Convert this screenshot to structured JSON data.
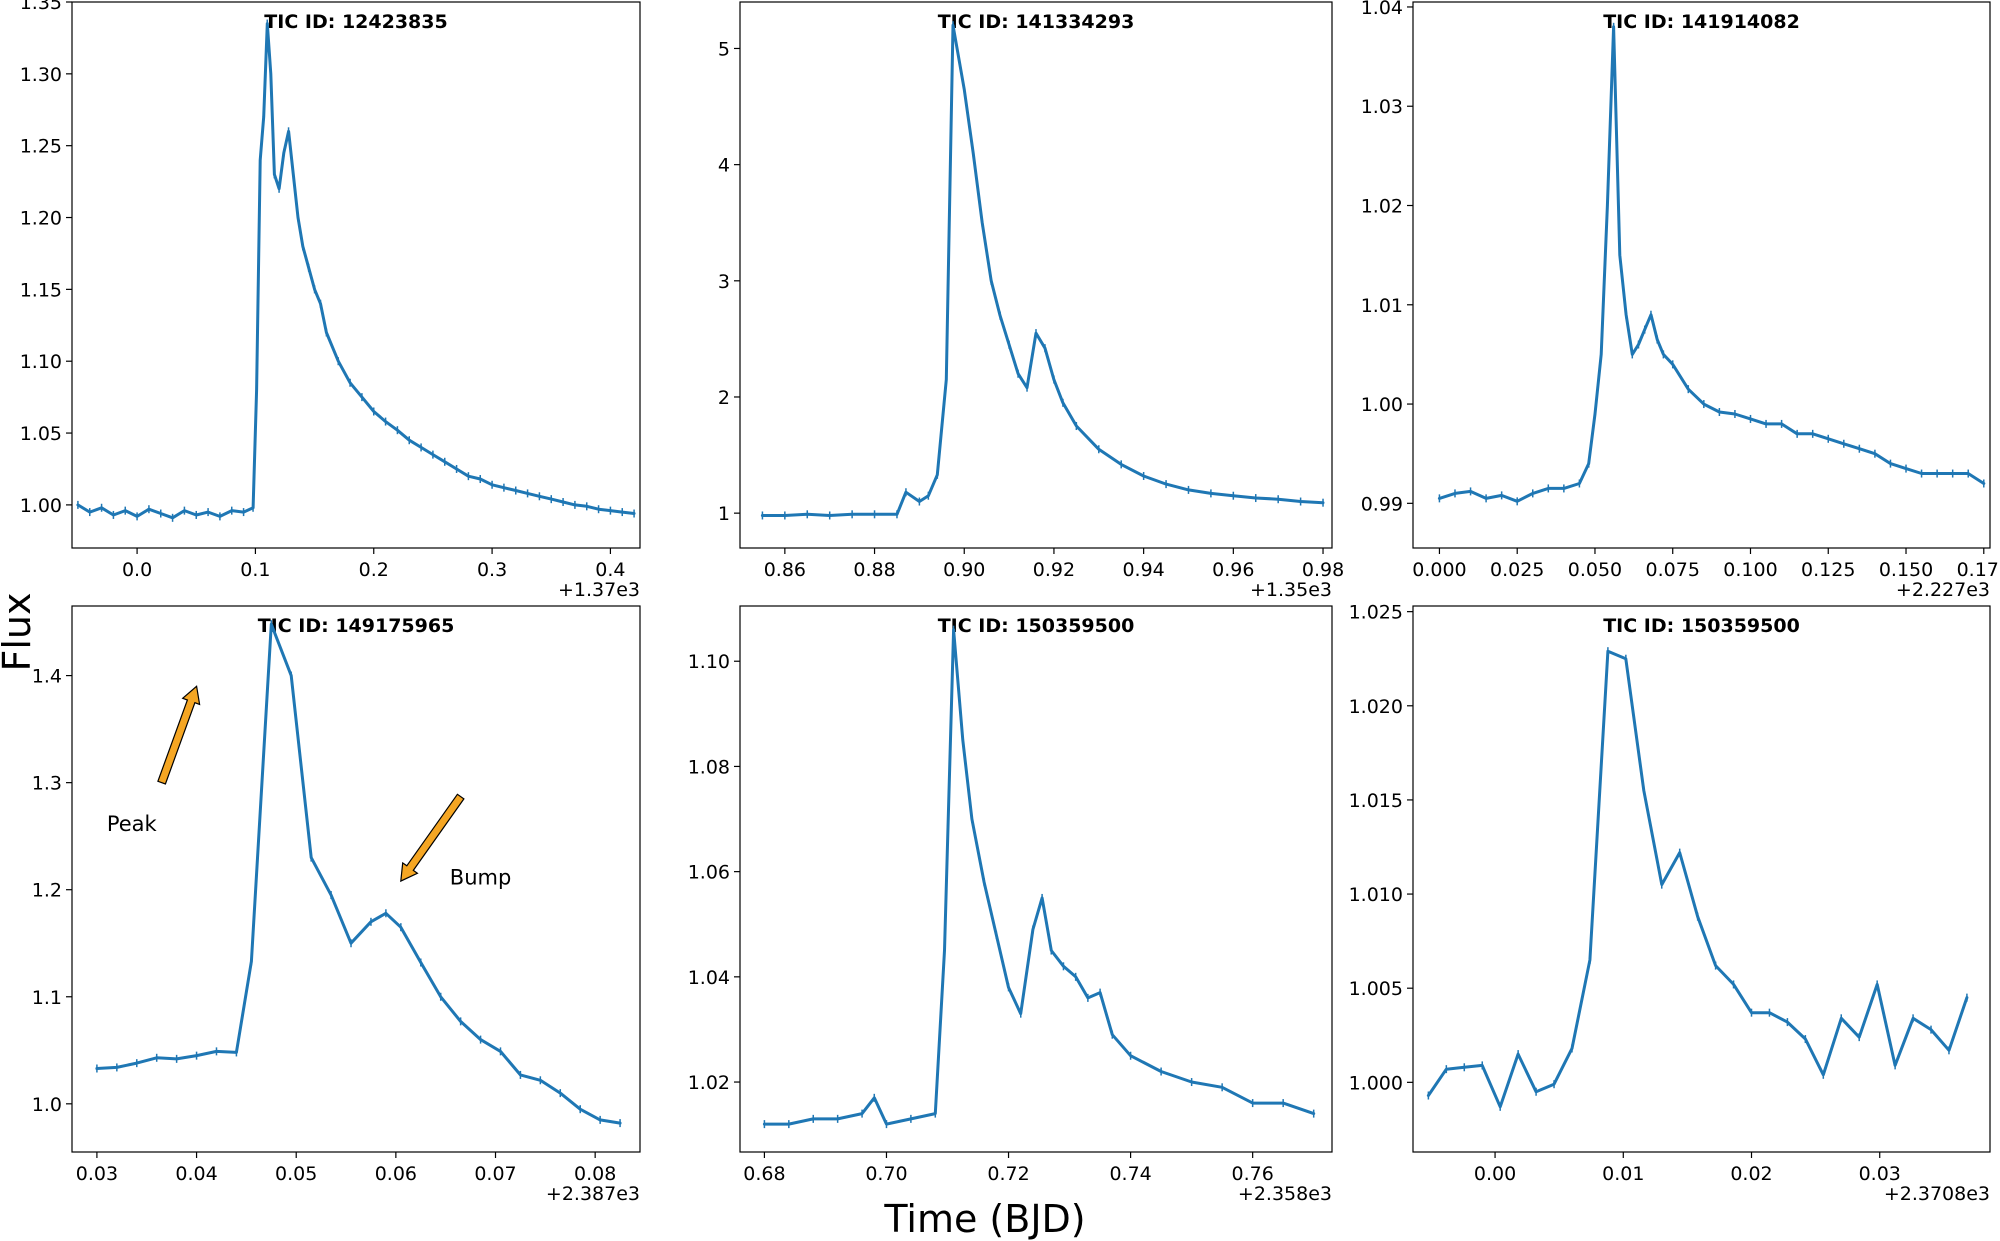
{
  "figure": {
    "xlabel": "Time (BJD)",
    "ylabel": "Flux",
    "line_color": "#1f77b4",
    "arrow_color": "#f5a623"
  },
  "chart_data": [
    {
      "type": "line",
      "title": "TIC ID: 12423835",
      "xlim": [
        -0.055,
        0.425
      ],
      "ylim": [
        0.97,
        1.35
      ],
      "xticks": [
        0.0,
        0.1,
        0.2,
        0.3,
        0.4
      ],
      "xtick_labels": [
        "0.0",
        "0.1",
        "0.2",
        "0.3",
        "0.4"
      ],
      "yticks": [
        1.0,
        1.05,
        1.1,
        1.15,
        1.2,
        1.25,
        1.3,
        1.35
      ],
      "ytick_labels": [
        "1.00",
        "1.05",
        "1.10",
        "1.15",
        "1.20",
        "1.25",
        "1.30",
        "1.35"
      ],
      "x_offset": "+1.37e3",
      "series": [
        {
          "x": [
            -0.05,
            -0.04,
            -0.03,
            -0.02,
            -0.01,
            0.0,
            0.01,
            0.02,
            0.03,
            0.04,
            0.05,
            0.06,
            0.07,
            0.08,
            0.09,
            0.098,
            0.101,
            0.104,
            0.107,
            0.11,
            0.113,
            0.116,
            0.12,
            0.124,
            0.128,
            0.132,
            0.136,
            0.14,
            0.145,
            0.15,
            0.155,
            0.16,
            0.17,
            0.18,
            0.19,
            0.2,
            0.21,
            0.22,
            0.23,
            0.24,
            0.25,
            0.26,
            0.27,
            0.28,
            0.29,
            0.3,
            0.31,
            0.32,
            0.33,
            0.34,
            0.35,
            0.36,
            0.37,
            0.38,
            0.39,
            0.4,
            0.41,
            0.42
          ],
          "y": [
            1.0,
            0.995,
            0.998,
            0.993,
            0.996,
            0.992,
            0.997,
            0.994,
            0.991,
            0.996,
            0.993,
            0.995,
            0.992,
            0.996,
            0.995,
            0.998,
            1.08,
            1.24,
            1.27,
            1.335,
            1.3,
            1.23,
            1.22,
            1.245,
            1.26,
            1.23,
            1.2,
            1.18,
            1.165,
            1.15,
            1.14,
            1.12,
            1.1,
            1.085,
            1.075,
            1.065,
            1.058,
            1.052,
            1.045,
            1.04,
            1.035,
            1.03,
            1.025,
            1.02,
            1.018,
            1.014,
            1.012,
            1.01,
            1.008,
            1.006,
            1.004,
            1.002,
            1.0,
            0.999,
            0.997,
            0.996,
            0.995,
            0.994
          ]
        }
      ],
      "annotations": []
    },
    {
      "type": "line",
      "title": "TIC ID: 141334293",
      "xlim": [
        0.85,
        0.982
      ],
      "ylim": [
        0.7,
        5.4
      ],
      "xticks": [
        0.86,
        0.88,
        0.9,
        0.92,
        0.94,
        0.96,
        0.98
      ],
      "xtick_labels": [
        "0.86",
        "0.88",
        "0.90",
        "0.92",
        "0.94",
        "0.96",
        "0.98"
      ],
      "yticks": [
        1,
        2,
        3,
        4,
        5
      ],
      "ytick_labels": [
        "1",
        "2",
        "3",
        "4",
        "5"
      ],
      "x_offset": "+1.35e3",
      "series": [
        {
          "x": [
            0.855,
            0.86,
            0.865,
            0.87,
            0.875,
            0.88,
            0.885,
            0.887,
            0.89,
            0.892,
            0.894,
            0.896,
            0.8975,
            0.9,
            0.902,
            0.904,
            0.906,
            0.908,
            0.91,
            0.912,
            0.914,
            0.916,
            0.918,
            0.92,
            0.922,
            0.925,
            0.93,
            0.935,
            0.94,
            0.945,
            0.95,
            0.955,
            0.96,
            0.965,
            0.97,
            0.975,
            0.98
          ],
          "y": [
            0.98,
            0.98,
            0.99,
            0.98,
            0.99,
            0.99,
            0.99,
            1.18,
            1.1,
            1.15,
            1.33,
            2.15,
            5.2,
            4.65,
            4.1,
            3.5,
            3.0,
            2.7,
            2.45,
            2.2,
            2.08,
            2.55,
            2.42,
            2.15,
            1.95,
            1.75,
            1.55,
            1.42,
            1.32,
            1.25,
            1.2,
            1.17,
            1.15,
            1.13,
            1.12,
            1.1,
            1.09
          ]
        }
      ],
      "annotations": []
    },
    {
      "type": "line",
      "title": "TIC ID: 141914082",
      "xlim": [
        -0.0085,
        0.177
      ],
      "ylim": [
        0.9855,
        1.0405
      ],
      "xticks": [
        0.0,
        0.025,
        0.05,
        0.075,
        0.1,
        0.125,
        0.15,
        0.175
      ],
      "xtick_labels": [
        "0.000",
        "0.025",
        "0.050",
        "0.075",
        "0.100",
        "0.125",
        "0.150",
        "0.175"
      ],
      "yticks": [
        0.99,
        1.0,
        1.01,
        1.02,
        1.03,
        1.04
      ],
      "ytick_labels": [
        "0.99",
        "1.00",
        "1.01",
        "1.02",
        "1.03",
        "1.04"
      ],
      "x_offset": "+2.227e3",
      "series": [
        {
          "x": [
            0.0,
            0.005,
            0.01,
            0.015,
            0.02,
            0.025,
            0.03,
            0.035,
            0.04,
            0.045,
            0.048,
            0.05,
            0.052,
            0.054,
            0.056,
            0.058,
            0.06,
            0.062,
            0.064,
            0.066,
            0.068,
            0.07,
            0.072,
            0.075,
            0.08,
            0.085,
            0.09,
            0.095,
            0.1,
            0.105,
            0.11,
            0.115,
            0.12,
            0.125,
            0.13,
            0.135,
            0.14,
            0.145,
            0.15,
            0.155,
            0.16,
            0.165,
            0.17,
            0.175
          ],
          "y": [
            0.9905,
            0.991,
            0.9912,
            0.9905,
            0.9908,
            0.9902,
            0.991,
            0.9915,
            0.9915,
            0.992,
            0.994,
            0.999,
            1.005,
            1.02,
            1.038,
            1.015,
            1.009,
            1.005,
            1.006,
            1.0075,
            1.009,
            1.0065,
            1.005,
            1.004,
            1.0015,
            1.0,
            0.9992,
            0.999,
            0.9985,
            0.998,
            0.998,
            0.997,
            0.997,
            0.9965,
            0.996,
            0.9955,
            0.995,
            0.994,
            0.9935,
            0.993,
            0.993,
            0.993,
            0.993,
            0.992
          ]
        }
      ],
      "annotations": []
    },
    {
      "type": "line",
      "title": "TIC ID: 149175965",
      "xlim": [
        0.0275,
        0.0845
      ],
      "ylim": [
        0.955,
        1.465
      ],
      "xticks": [
        0.03,
        0.04,
        0.05,
        0.06,
        0.07,
        0.08
      ],
      "xtick_labels": [
        "0.03",
        "0.04",
        "0.05",
        "0.06",
        "0.07",
        "0.08"
      ],
      "yticks": [
        1.0,
        1.1,
        1.2,
        1.3,
        1.4
      ],
      "ytick_labels": [
        "1.0",
        "1.1",
        "1.2",
        "1.3",
        "1.4"
      ],
      "x_offset": "+2.387e3",
      "series": [
        {
          "x": [
            0.03,
            0.032,
            0.034,
            0.036,
            0.038,
            0.04,
            0.042,
            0.044,
            0.0455,
            0.0475,
            0.0495,
            0.0515,
            0.0535,
            0.0555,
            0.0575,
            0.059,
            0.0605,
            0.0625,
            0.0645,
            0.0665,
            0.0685,
            0.0705,
            0.0725,
            0.0745,
            0.0765,
            0.0785,
            0.0805,
            0.0825
          ],
          "y": [
            1.033,
            1.034,
            1.038,
            1.043,
            1.042,
            1.045,
            1.049,
            1.048,
            1.133,
            1.448,
            1.4,
            1.23,
            1.195,
            1.15,
            1.17,
            1.178,
            1.165,
            1.132,
            1.1,
            1.077,
            1.06,
            1.049,
            1.027,
            1.022,
            1.01,
            0.995,
            0.985,
            0.982
          ]
        }
      ],
      "annotations": [
        {
          "text": "Peak",
          "tx": 0.0335,
          "ty": 1.255,
          "ax0": 0.0365,
          "ay0": 1.3,
          "ax1": 0.04,
          "ay1": 1.39
        },
        {
          "text": "Bump",
          "tx": 0.0685,
          "ty": 1.205,
          "ax0": 0.0665,
          "ay0": 1.287,
          "ax1": 0.0605,
          "ay1": 1.208
        }
      ]
    },
    {
      "type": "line",
      "title": "TIC ID: 150359500",
      "xlim": [
        0.676,
        0.773
      ],
      "ylim": [
        1.0067,
        1.1105
      ],
      "xticks": [
        0.68,
        0.7,
        0.72,
        0.74,
        0.76
      ],
      "xtick_labels": [
        "0.68",
        "0.70",
        "0.72",
        "0.74",
        "0.76"
      ],
      "yticks": [
        1.02,
        1.04,
        1.06,
        1.08,
        1.1
      ],
      "ytick_labels": [
        "1.02",
        "1.04",
        "1.06",
        "1.08",
        "1.10"
      ],
      "x_offset": "+2.358e3",
      "series": [
        {
          "x": [
            0.68,
            0.684,
            0.688,
            0.692,
            0.696,
            0.698,
            0.7,
            0.704,
            0.708,
            0.7095,
            0.711,
            0.7125,
            0.714,
            0.716,
            0.718,
            0.72,
            0.722,
            0.724,
            0.7255,
            0.727,
            0.729,
            0.731,
            0.733,
            0.735,
            0.737,
            0.74,
            0.745,
            0.75,
            0.755,
            0.76,
            0.765,
            0.77
          ],
          "y": [
            1.012,
            1.012,
            1.013,
            1.013,
            1.014,
            1.017,
            1.012,
            1.013,
            1.014,
            1.045,
            1.106,
            1.085,
            1.07,
            1.058,
            1.048,
            1.038,
            1.033,
            1.049,
            1.055,
            1.045,
            1.042,
            1.04,
            1.036,
            1.037,
            1.029,
            1.025,
            1.022,
            1.02,
            1.019,
            1.016,
            1.016,
            1.014
          ]
        }
      ],
      "annotations": []
    },
    {
      "type": "line",
      "title": "TIC ID: 150359500",
      "xlim": [
        -0.0064,
        0.0386
      ],
      "ylim": [
        0.9963,
        1.0253
      ],
      "xticks": [
        0.0,
        0.01,
        0.02,
        0.03
      ],
      "xtick_labels": [
        "0.00",
        "0.01",
        "0.02",
        "0.03"
      ],
      "yticks": [
        1.0,
        1.005,
        1.01,
        1.015,
        1.02,
        1.025
      ],
      "ytick_labels": [
        "1.000",
        "1.005",
        "1.010",
        "1.015",
        "1.020",
        "1.025"
      ],
      "x_offset": "+2.3708e3",
      "series": [
        {
          "x": [
            -0.0052,
            -0.0038,
            -0.0024,
            -0.001,
            0.0004,
            0.0018,
            0.0032,
            0.0046,
            0.006,
            0.0074,
            0.0088,
            0.0102,
            0.0116,
            0.013,
            0.0144,
            0.0158,
            0.0172,
            0.0186,
            0.02,
            0.0214,
            0.0228,
            0.0242,
            0.0256,
            0.027,
            0.0284,
            0.0298,
            0.0312,
            0.0326,
            0.034,
            0.0354,
            0.0368
          ],
          "y": [
            0.9993,
            1.0007,
            1.0008,
            1.0009,
            0.9987,
            1.0015,
            0.9995,
            0.9999,
            1.0018,
            1.0065,
            1.0229,
            1.0225,
            1.0155,
            1.0105,
            1.0122,
            1.0088,
            1.0062,
            1.0052,
            1.0037,
            1.0037,
            1.0032,
            1.0023,
            1.0004,
            1.0034,
            1.0024,
            1.0052,
            1.0009,
            1.0034,
            1.0028,
            1.0017,
            1.0045
          ]
        }
      ],
      "annotations": []
    }
  ]
}
